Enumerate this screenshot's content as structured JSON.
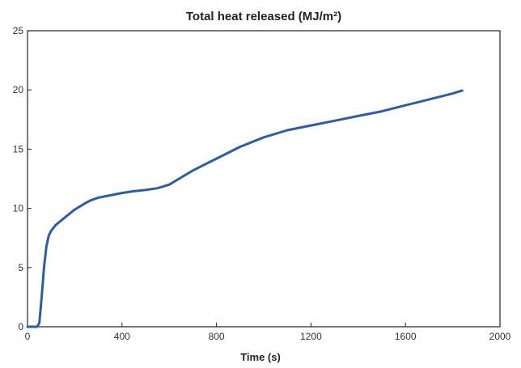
{
  "chart_data": {
    "type": "line",
    "title": "Total heat released (MJ/m²)",
    "xlabel": "Time (s)",
    "ylabel": "",
    "xlim": [
      0,
      2000
    ],
    "ylim": [
      0,
      25
    ],
    "xticks": [
      "0",
      "400",
      "800",
      "1200",
      "1600",
      "2000"
    ],
    "yticks": [
      "0",
      "5",
      "10",
      "15",
      "20",
      "25"
    ],
    "grid": false,
    "legend": "none",
    "series": [
      {
        "color": "#2a5fa3",
        "x": [
          0,
          20,
          40,
          50,
          60,
          70,
          80,
          90,
          100,
          120,
          150,
          200,
          250,
          270,
          300,
          350,
          400,
          450,
          500,
          550,
          600,
          650,
          700,
          800,
          900,
          1000,
          1100,
          1200,
          1300,
          1400,
          1500,
          1600,
          1700,
          1800,
          1840
        ],
        "y": [
          0,
          0,
          0,
          0.3,
          2.5,
          5.0,
          6.8,
          7.7,
          8.1,
          8.6,
          9.1,
          9.9,
          10.5,
          10.7,
          10.9,
          11.1,
          11.3,
          11.45,
          11.55,
          11.7,
          12.0,
          12.6,
          13.2,
          14.2,
          15.2,
          16.0,
          16.6,
          17.0,
          17.4,
          17.8,
          18.2,
          18.7,
          19.2,
          19.7,
          19.95
        ]
      }
    ]
  }
}
